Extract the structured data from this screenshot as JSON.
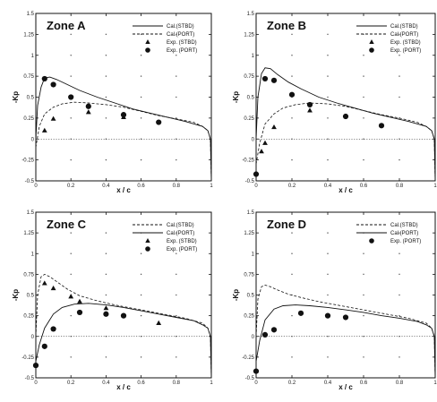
{
  "figure": {
    "colors": {
      "ink": "#111111",
      "background": "#ffffff"
    }
  },
  "chart_data": [
    {
      "type": "line",
      "title": "Zone A",
      "xlabel": "x / c",
      "ylabel": "-Kp",
      "xlim": [
        0,
        1
      ],
      "ylim": [
        -0.5,
        1.5
      ],
      "xticks": [
        "0",
        "0.2",
        "0.4",
        "0.6",
        "0.8",
        "1"
      ],
      "yticks": [
        "-0.5",
        "-0.25",
        "0",
        "0.25",
        "0.5",
        "0.75",
        "1",
        "1.25",
        "1.5"
      ],
      "grid": "dotted",
      "legend_position": "top-right",
      "series": [
        {
          "name": "Cal.(STBD)",
          "style": "solid",
          "x": [
            0.0,
            0.01,
            0.03,
            0.05,
            0.08,
            0.12,
            0.18,
            0.25,
            0.35,
            0.45,
            0.55,
            0.65,
            0.75,
            0.85,
            0.95,
            0.98,
            0.995,
            1.0
          ],
          "values": [
            0.0,
            0.4,
            0.62,
            0.73,
            0.74,
            0.71,
            0.65,
            0.58,
            0.5,
            0.43,
            0.36,
            0.31,
            0.26,
            0.21,
            0.15,
            0.1,
            0.0,
            -0.5
          ]
        },
        {
          "name": "Cal.(PORT)",
          "style": "dashed",
          "x": [
            0.0,
            0.02,
            0.05,
            0.1,
            0.15,
            0.22,
            0.3,
            0.4,
            0.5,
            0.6,
            0.7,
            0.8,
            0.9,
            0.95,
            0.98,
            0.995,
            1.0
          ],
          "values": [
            -0.1,
            0.15,
            0.3,
            0.38,
            0.42,
            0.44,
            0.43,
            0.41,
            0.38,
            0.33,
            0.28,
            0.24,
            0.2,
            0.15,
            0.1,
            0.0,
            -0.5
          ]
        },
        {
          "name": "Exp. (STBD)",
          "style": "triangle",
          "x": [
            0.05,
            0.1,
            0.3,
            0.5
          ],
          "values": [
            0.1,
            0.24,
            0.32,
            0.26
          ]
        },
        {
          "name": "Exp. (PORT)",
          "style": "circle",
          "x": [
            0.05,
            0.1,
            0.2,
            0.3,
            0.5,
            0.7
          ],
          "values": [
            0.72,
            0.65,
            0.5,
            0.39,
            0.29,
            0.2
          ]
        }
      ]
    },
    {
      "type": "line",
      "title": "Zone B",
      "xlabel": "x / c",
      "ylabel": "-Kp",
      "xlim": [
        0,
        1
      ],
      "ylim": [
        -0.5,
        1.5
      ],
      "xticks": [
        "0",
        "0.2",
        "0.4",
        "0.6",
        "0.8",
        "1"
      ],
      "yticks": [
        "-0.5",
        "-0.25",
        "0",
        "0.25",
        "0.5",
        "0.75",
        "1",
        "1.25",
        "1.5"
      ],
      "grid": "dotted",
      "legend_position": "top-right",
      "series": [
        {
          "name": "Cal.(STBD)",
          "style": "solid",
          "x": [
            0.0,
            0.01,
            0.03,
            0.05,
            0.08,
            0.12,
            0.18,
            0.25,
            0.35,
            0.45,
            0.55,
            0.65,
            0.75,
            0.85,
            0.95,
            0.98,
            0.995,
            1.0
          ],
          "values": [
            0.0,
            0.5,
            0.78,
            0.85,
            0.84,
            0.77,
            0.68,
            0.6,
            0.5,
            0.43,
            0.37,
            0.31,
            0.26,
            0.21,
            0.15,
            0.1,
            0.0,
            -0.5
          ]
        },
        {
          "name": "Cal.(PORT)",
          "style": "dashed",
          "x": [
            0.0,
            0.02,
            0.05,
            0.1,
            0.15,
            0.22,
            0.3,
            0.4,
            0.5,
            0.6,
            0.7,
            0.8,
            0.9,
            0.95,
            0.98,
            0.995,
            1.0
          ],
          "values": [
            -0.3,
            -0.05,
            0.18,
            0.3,
            0.37,
            0.41,
            0.43,
            0.42,
            0.39,
            0.34,
            0.29,
            0.25,
            0.2,
            0.15,
            0.1,
            0.0,
            -0.5
          ]
        },
        {
          "name": "Exp. (STBD)",
          "style": "triangle",
          "x": [
            0.03,
            0.05,
            0.1,
            0.3
          ],
          "values": [
            -0.15,
            -0.05,
            0.14,
            0.34
          ]
        },
        {
          "name": "Exp. (PORT)",
          "style": "circle",
          "x": [
            0.0,
            0.05,
            0.1,
            0.2,
            0.3,
            0.5,
            0.7
          ],
          "values": [
            -0.42,
            0.72,
            0.7,
            0.53,
            0.41,
            0.27,
            0.16
          ]
        }
      ]
    },
    {
      "type": "line",
      "title": "Zone C",
      "xlabel": "x / c",
      "ylabel": "-Kp",
      "xlim": [
        0,
        1
      ],
      "ylim": [
        -0.5,
        1.5
      ],
      "xticks": [
        "0",
        "0.2",
        "0.4",
        "0.6",
        "0.8",
        "1"
      ],
      "yticks": [
        "-0.5",
        "-0.25",
        "0",
        "0.25",
        "0.5",
        "0.75",
        "1",
        "1.25",
        "1.5"
      ],
      "grid": "dotted",
      "legend_position": "top-right",
      "series": [
        {
          "name": "Cal.(STBD)",
          "style": "dashed",
          "x": [
            0.0,
            0.01,
            0.03,
            0.05,
            0.08,
            0.12,
            0.18,
            0.25,
            0.35,
            0.45,
            0.55,
            0.65,
            0.75,
            0.85,
            0.95,
            0.98,
            0.995,
            1.0
          ],
          "values": [
            0.0,
            0.5,
            0.72,
            0.75,
            0.72,
            0.66,
            0.57,
            0.49,
            0.43,
            0.38,
            0.34,
            0.3,
            0.26,
            0.22,
            0.16,
            0.1,
            0.0,
            -0.5
          ]
        },
        {
          "name": "Cal.(PORT)",
          "style": "solid",
          "x": [
            0.0,
            0.02,
            0.05,
            0.1,
            0.15,
            0.22,
            0.3,
            0.4,
            0.5,
            0.6,
            0.7,
            0.8,
            0.9,
            0.95,
            0.98,
            0.995,
            1.0
          ],
          "values": [
            -0.3,
            -0.1,
            0.1,
            0.27,
            0.35,
            0.39,
            0.4,
            0.38,
            0.35,
            0.31,
            0.27,
            0.23,
            0.19,
            0.14,
            0.1,
            0.0,
            -0.5
          ]
        },
        {
          "name": "Exp. (STBD)",
          "style": "triangle",
          "x": [
            0.05,
            0.1,
            0.2,
            0.25,
            0.4,
            0.7
          ],
          "values": [
            0.64,
            0.58,
            0.48,
            0.42,
            0.34,
            0.16
          ]
        },
        {
          "name": "Exp. (PORT)",
          "style": "circle",
          "x": [
            0.0,
            0.05,
            0.1,
            0.25,
            0.4,
            0.5
          ],
          "values": [
            -0.35,
            -0.12,
            0.09,
            0.29,
            0.27,
            0.25
          ]
        }
      ]
    },
    {
      "type": "line",
      "title": "Zone D",
      "xlabel": "x / c",
      "ylabel": "-Kp",
      "xlim": [
        0,
        1
      ],
      "ylim": [
        -0.5,
        1.5
      ],
      "xticks": [
        "0",
        "0.2",
        "0.4",
        "0.6",
        "0.8",
        "1"
      ],
      "yticks": [
        "-0.5",
        "-0.25",
        "0",
        "0.25",
        "0.5",
        "0.75",
        "1",
        "1.25",
        "1.5"
      ],
      "grid": "dotted",
      "legend_position": "top-right",
      "series": [
        {
          "name": "Cal.(STBD)",
          "style": "dashed",
          "x": [
            0.0,
            0.01,
            0.03,
            0.05,
            0.08,
            0.12,
            0.18,
            0.25,
            0.35,
            0.45,
            0.55,
            0.65,
            0.75,
            0.85,
            0.95,
            0.98,
            0.995,
            1.0
          ],
          "values": [
            0.0,
            0.45,
            0.6,
            0.62,
            0.6,
            0.56,
            0.51,
            0.47,
            0.42,
            0.38,
            0.34,
            0.3,
            0.26,
            0.22,
            0.16,
            0.1,
            0.0,
            -0.5
          ]
        },
        {
          "name": "Cal.(PORT)",
          "style": "solid",
          "x": [
            0.0,
            0.02,
            0.05,
            0.1,
            0.15,
            0.22,
            0.3,
            0.4,
            0.5,
            0.6,
            0.7,
            0.8,
            0.9,
            0.95,
            0.98,
            0.995,
            1.0
          ],
          "values": [
            -0.3,
            -0.05,
            0.2,
            0.33,
            0.37,
            0.38,
            0.37,
            0.35,
            0.32,
            0.29,
            0.25,
            0.22,
            0.18,
            0.14,
            0.1,
            0.0,
            -0.5
          ]
        },
        {
          "name": "Exp. (PORT)",
          "style": "circle",
          "x": [
            0.0,
            0.05,
            0.1,
            0.25,
            0.4,
            0.5
          ],
          "values": [
            -0.42,
            0.02,
            0.08,
            0.28,
            0.25,
            0.23
          ]
        }
      ]
    }
  ]
}
